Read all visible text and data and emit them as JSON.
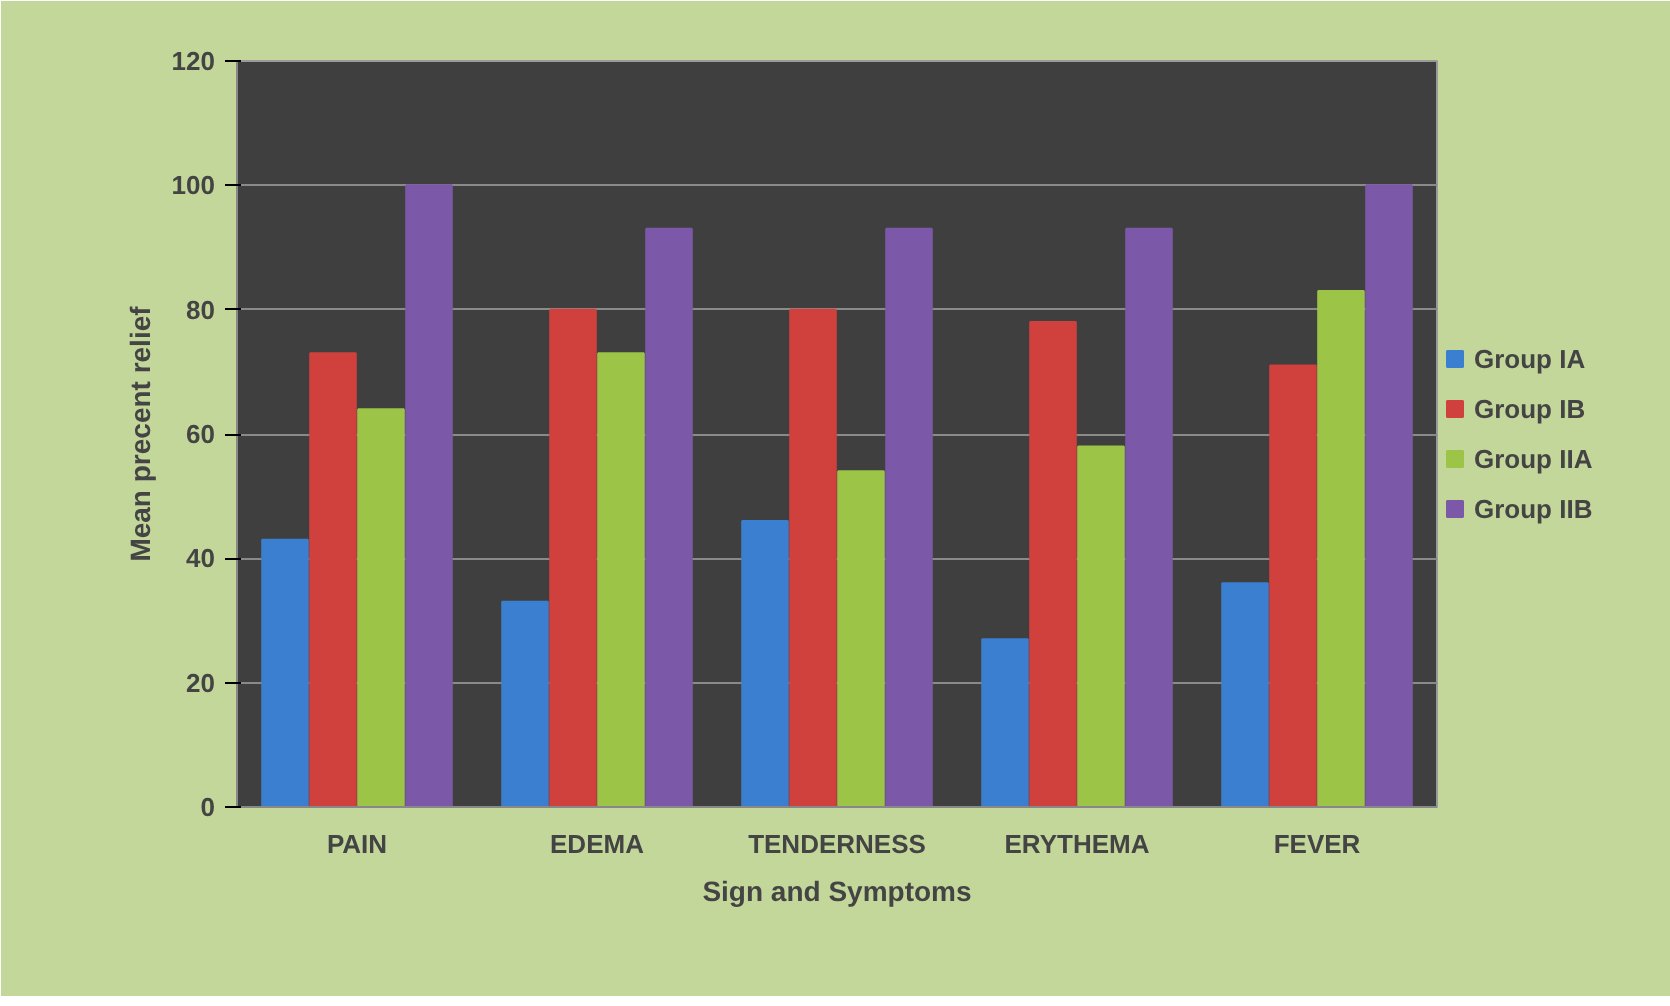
{
  "chart_data": {
    "type": "bar",
    "xlabel": "Sign and Symptoms",
    "ylabel": "Mean precent relief",
    "categories": [
      "PAIN",
      "EDEMA",
      "TENDERNESS",
      "ERYTHEMA",
      "FEVER"
    ],
    "series": [
      {
        "name": "Group IA",
        "color": "#3b7fd0",
        "values": [
          43,
          33,
          46,
          27,
          36
        ]
      },
      {
        "name": "Group IB",
        "color": "#d0403c",
        "values": [
          73,
          80,
          80,
          78,
          71
        ]
      },
      {
        "name": "Group IIA",
        "color": "#9cc447",
        "values": [
          64,
          73,
          54,
          58,
          83
        ]
      },
      {
        "name": "Group IIB",
        "color": "#7c58a8",
        "values": [
          100,
          93,
          93,
          93,
          100
        ]
      }
    ],
    "ylim": [
      0,
      120
    ],
    "yticks": [
      0,
      20,
      40,
      60,
      80,
      100,
      120
    ],
    "grid": "y",
    "legend": "right"
  }
}
